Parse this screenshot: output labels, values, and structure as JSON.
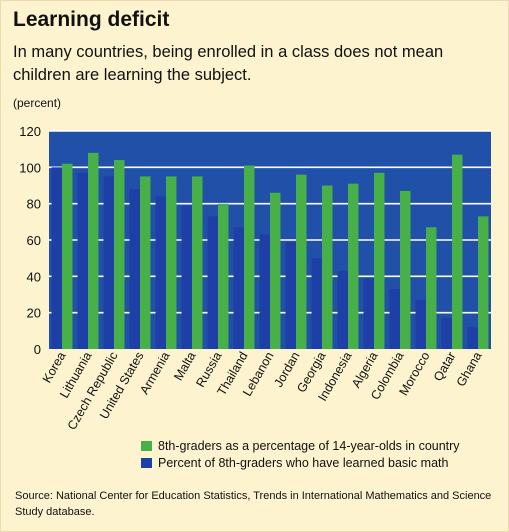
{
  "title": "Learning deficit",
  "subtitle": "In many countries, being enrolled in a class does not mean children are learning the subject.",
  "unit_label": "(percent)",
  "source": "Source: National Center for Education Statistics, Trends in International Mathematics and Science Study database.",
  "colors": {
    "plot_bg": "#2050a8",
    "green": "#48b048",
    "blue": "#1e3fa5",
    "panel": "#fdf3cf"
  },
  "chart_data": {
    "type": "bar",
    "categories": [
      "Korea",
      "Lithuania",
      "Czech Republic",
      "United States",
      "Armenia",
      "Malta",
      "Russia",
      "Thailand",
      "Lebanon",
      "Jordan",
      "Georgia",
      "Indonesia",
      "Algeria",
      "Colombia",
      "Morocco",
      "Qatar",
      "Ghana"
    ],
    "series": [
      {
        "name": "8th-graders as a percentage of 14-year-olds in country",
        "color": "#48b048",
        "values": [
          102,
          108,
          104,
          95,
          95,
          95,
          80,
          101,
          86,
          96,
          90,
          91,
          97,
          87,
          67,
          107,
          73
        ]
      },
      {
        "name": "Percent of 8th-graders who have learned basic math",
        "color": "#1e3fa5",
        "values": [
          100,
          97,
          95,
          88,
          84,
          79,
          73,
          67,
          63,
          59,
          50,
          43,
          39,
          33,
          27,
          17,
          12
        ]
      }
    ],
    "yticks": [
      0,
      20,
      40,
      60,
      80,
      100,
      120
    ],
    "ylim": [
      0,
      120
    ],
    "grid": true,
    "legend_position": "bottom"
  }
}
